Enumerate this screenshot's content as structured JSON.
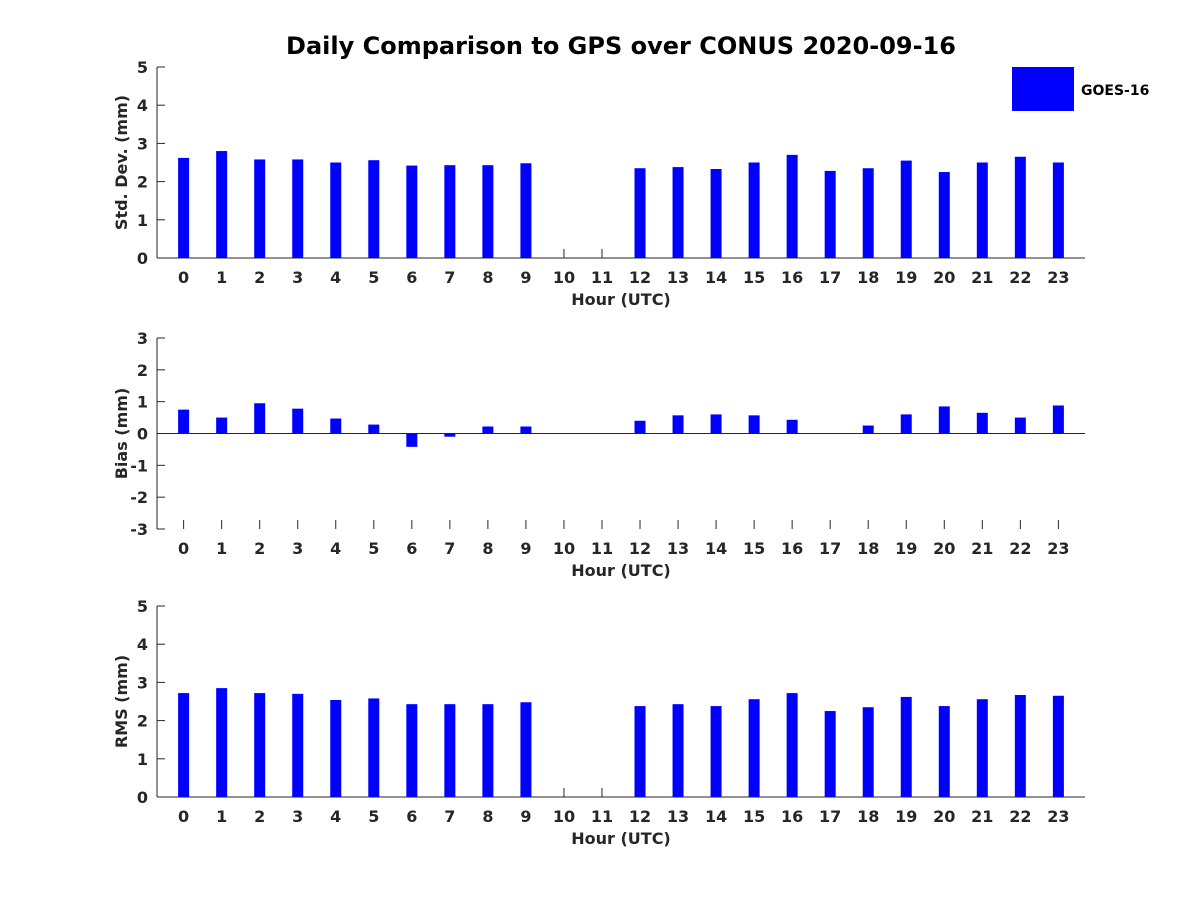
{
  "chart_data": {
    "type": "bar",
    "title": "Daily Comparison to GPS over CONUS 2020-09-16",
    "legend": {
      "entries": [
        "GOES-16"
      ],
      "placement": "top-right"
    },
    "series_color": "#0000ff",
    "categories": [
      "0",
      "1",
      "2",
      "3",
      "4",
      "5",
      "6",
      "7",
      "8",
      "9",
      "10",
      "11",
      "12",
      "13",
      "14",
      "15",
      "16",
      "17",
      "18",
      "19",
      "20",
      "21",
      "22",
      "23"
    ],
    "panels": [
      {
        "ylabel": "Std. Dev. (mm)",
        "xlabel": "Hour (UTC)",
        "ylim": [
          0,
          5
        ],
        "yticks": [
          "0",
          "1",
          "2",
          "3",
          "4",
          "5"
        ],
        "values": [
          2.62,
          2.8,
          2.58,
          2.58,
          2.5,
          2.56,
          2.42,
          2.43,
          2.43,
          2.48,
          null,
          null,
          2.35,
          2.38,
          2.33,
          2.5,
          2.7,
          2.28,
          2.35,
          2.55,
          2.25,
          2.5,
          2.65,
          2.5
        ]
      },
      {
        "ylabel": "Bias (mm)",
        "xlabel": "Hour (UTC)",
        "ylim": [
          -3,
          3
        ],
        "yticks": [
          "-3",
          "-2",
          "-1",
          "0",
          "1",
          "2",
          "3"
        ],
        "values": [
          0.75,
          0.5,
          0.95,
          0.78,
          0.47,
          0.28,
          -0.42,
          -0.1,
          0.22,
          0.22,
          null,
          null,
          0.4,
          0.57,
          0.6,
          0.57,
          0.43,
          0.0,
          0.25,
          0.6,
          0.85,
          0.65,
          0.5,
          0.88
        ]
      },
      {
        "ylabel": "RMS (mm)",
        "xlabel": "Hour (UTC)",
        "ylim": [
          0,
          5
        ],
        "yticks": [
          "0",
          "1",
          "2",
          "3",
          "4",
          "5"
        ],
        "values": [
          2.72,
          2.85,
          2.72,
          2.7,
          2.54,
          2.58,
          2.43,
          2.43,
          2.43,
          2.48,
          null,
          null,
          2.38,
          2.43,
          2.38,
          2.56,
          2.72,
          2.25,
          2.35,
          2.62,
          2.38,
          2.56,
          2.67,
          2.65
        ]
      }
    ]
  }
}
